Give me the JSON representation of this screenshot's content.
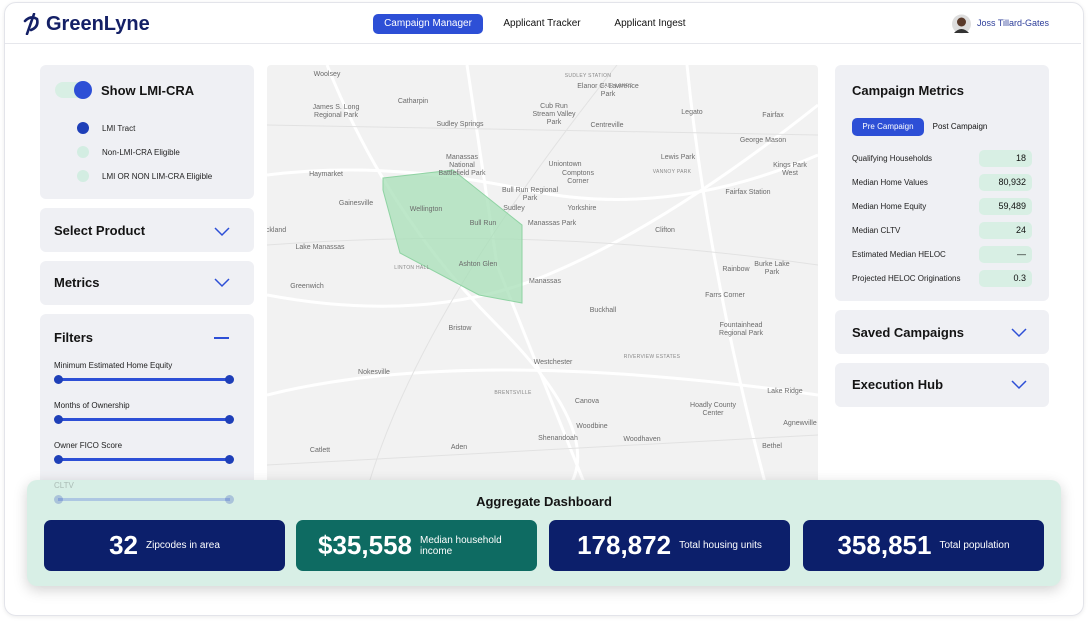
{
  "header": {
    "brand": "GreenLyne",
    "tabs": [
      "Campaign Manager",
      "Applicant Tracker",
      "Applicant Ingest"
    ],
    "user": "Joss Tillard-Gates"
  },
  "left": {
    "toggle": "Show LMI-CRA",
    "legend": [
      "LMI Tract",
      "Non-LMI-CRA Eligible",
      "LMI OR NON LIM-CRA Eligible"
    ],
    "sections": [
      "Select Product",
      "Metrics"
    ],
    "filters": {
      "title": "Filters",
      "items": [
        "Minimum Estimated Home Equity",
        "Months of Ownership",
        "Owner FICO Score",
        "CLTV"
      ]
    }
  },
  "map": {
    "labels": [
      "Woolsey",
      "Catharpin",
      "James S. Long Regional Park",
      "Sudley Springs",
      "Cub Run Stream Valley Park",
      "Elanor C. Lawrence Park",
      "Centreville",
      "Legato",
      "Fairfax",
      "George Mason",
      "Haymarket",
      "Manassas National Battlefield Park",
      "Uniontown",
      "Comptons Corner",
      "Lewis Park",
      "Kings Park West",
      "Gainesville",
      "Wellington",
      "Bull Run Regional Park",
      "Sudley",
      "Yorkshire",
      "Fairfax Station",
      "Bull Run",
      "Manassas Park",
      "Clifton",
      "Lake Manassas",
      "Ashton Glen",
      "Manassas",
      "Rainbow",
      "Burke Lake Park",
      "Greenwich",
      "Farrs Corner",
      "Bristow",
      "Buckhall",
      "Fountainhead Regional Park",
      "Nokesville",
      "Westchester",
      "Lake Ridge",
      "Canova",
      "Hoadly County Center",
      "Woodbine",
      "Agnewville",
      "Shenandoah",
      "Woodhaven",
      "Aden",
      "Catlett",
      "Bethel",
      "ckland"
    ],
    "caps": [
      "SUDLEY STATION",
      "FAIR LAKES",
      "VANNOY PARK",
      "LINTON HALL",
      "BRENTSVILLE",
      "RIVERVIEW ESTATES"
    ]
  },
  "metrics": {
    "title": "Campaign Metrics",
    "tabs": [
      "Pre Campaign",
      "Post Campaign"
    ],
    "rows": [
      {
        "label": "Qualifying Households",
        "value": 18
      },
      {
        "label": "Median Home Values",
        "value": "80,932"
      },
      {
        "label": "Median Home Equity",
        "value": "59,489"
      },
      {
        "label": "Median CLTV",
        "value": 24
      },
      {
        "label": "Estimated Median HELOC",
        "value": "—"
      },
      {
        "label": "Projected HELOC Originations",
        "value": 0.3
      }
    ]
  },
  "panels": [
    "Saved Campaigns",
    "Execution Hub"
  ],
  "dashboard": {
    "title": "Aggregate Dashboard",
    "cards": [
      {
        "value": 32,
        "label": "Zipcodes in area"
      },
      {
        "value": "$35,558",
        "label": "Median household income"
      },
      {
        "value": "178,872",
        "label": "Total housing units"
      },
      {
        "value": "358,851",
        "label": "Total population"
      }
    ]
  }
}
